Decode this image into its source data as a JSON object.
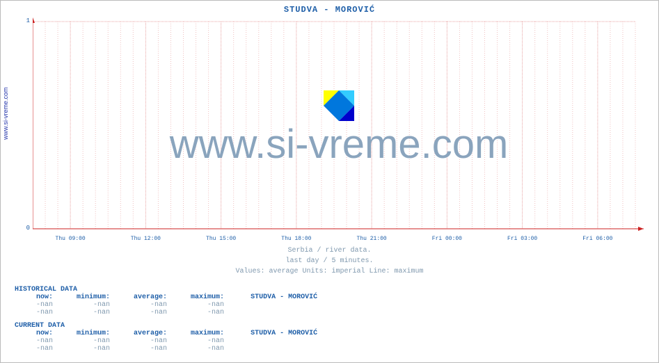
{
  "site_label": "www.si-vreme.com",
  "title": "STUDVA -  MOROVIĆ",
  "watermark": "www.si-vreme.com",
  "chart": {
    "type": "line",
    "ylim": [
      0,
      1
    ],
    "yticks": [
      0,
      1
    ],
    "xticks": [
      "Thu 09:00",
      "Thu 12:00",
      "Thu 15:00",
      "Thu 18:00",
      "Thu 21:00",
      "Fri 00:00",
      "Fri 03:00",
      "Fri 06:00"
    ],
    "minor_per_major": 6,
    "axis_color": "#cc2222",
    "grid_major_color": "#e8a0a0",
    "grid_minor_color": "#f0c0c0",
    "background_color": "#ffffff",
    "tick_label_color": "#1f5fa8",
    "tick_fontsize": 9,
    "series": []
  },
  "caption": {
    "line1": "Serbia / river data.",
    "line2": "last day / 5 minutes.",
    "line3": "Values: average  Units: imperial  Line: maximum"
  },
  "historical": {
    "heading": "HISTORICAL DATA",
    "header": {
      "now": "now:",
      "minimum": "minimum:",
      "average": "average:",
      "maximum": "maximum:",
      "station": "STUDVA -  MOROVIĆ"
    },
    "rows": [
      {
        "now": "-nan",
        "minimum": "-nan",
        "average": "-nan",
        "maximum": "-nan"
      },
      {
        "now": "-nan",
        "minimum": "-nan",
        "average": "-nan",
        "maximum": "-nan"
      }
    ]
  },
  "current": {
    "heading": "CURRENT DATA",
    "header": {
      "now": "now:",
      "minimum": "minimum:",
      "average": "average:",
      "maximum": "maximum:",
      "station": "STUDVA -  MOROVIĆ"
    },
    "rows": [
      {
        "now": "-nan",
        "minimum": "-nan",
        "average": "-nan",
        "maximum": "-nan"
      },
      {
        "now": "-nan",
        "minimum": "-nan",
        "average": "-nan",
        "maximum": "-nan"
      }
    ]
  },
  "logo_colors": {
    "tl": "#ffff00",
    "tr": "#33ccff",
    "diag": "#0077dd",
    "br": "#0000cc"
  }
}
